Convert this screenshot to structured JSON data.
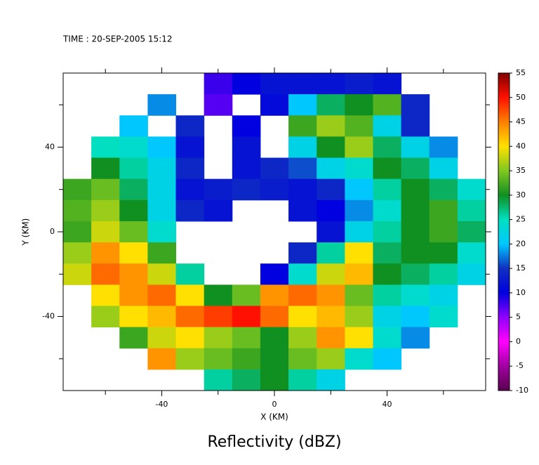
{
  "chart_data": {
    "type": "heatmap",
    "title": "TIME : 20-SEP-2005 15:12",
    "xlabel": "X (KM)",
    "ylabel": "Y (KM)",
    "colorbar_label": "Reflectivity (dBZ)",
    "xlim": [
      -75,
      75
    ],
    "ylim": [
      -75,
      75
    ],
    "xticks": [
      -40,
      0,
      40
    ],
    "yticks": [
      -40,
      0,
      40
    ],
    "x_minor_ticks": [
      -60,
      -20,
      20,
      60
    ],
    "y_minor_ticks": [
      -60,
      -20,
      20,
      60
    ],
    "x": [
      -70,
      -60,
      -50,
      -40,
      -30,
      -20,
      -10,
      0,
      10,
      20,
      30,
      40,
      50,
      60,
      70
    ],
    "y": [
      70,
      60,
      50,
      40,
      30,
      20,
      10,
      0,
      -10,
      -20,
      -30,
      -40,
      -50,
      -60,
      -70
    ],
    "z": [
      [
        null,
        null,
        null,
        null,
        null,
        8,
        10,
        12,
        12,
        12,
        13,
        12,
        null,
        null,
        null
      ],
      [
        null,
        null,
        null,
        18,
        null,
        7,
        null,
        11,
        20,
        28,
        30,
        33,
        14,
        null,
        null
      ],
      [
        null,
        null,
        20,
        null,
        14,
        null,
        10,
        null,
        32,
        36,
        33,
        22,
        14,
        null,
        null
      ],
      [
        null,
        25,
        24,
        20,
        12,
        null,
        12,
        null,
        22,
        30,
        36,
        28,
        22,
        18,
        null
      ],
      [
        null,
        30,
        26,
        22,
        14,
        null,
        12,
        14,
        16,
        22,
        24,
        30,
        28,
        22,
        null
      ],
      [
        32,
        34,
        28,
        22,
        12,
        13,
        14,
        13,
        12,
        14,
        20,
        26,
        30,
        28,
        24
      ],
      [
        33,
        36,
        30,
        22,
        14,
        12,
        null,
        null,
        12,
        10,
        18,
        24,
        30,
        32,
        26
      ],
      [
        32,
        38,
        34,
        24,
        null,
        null,
        null,
        null,
        null,
        12,
        22,
        26,
        30,
        32,
        28
      ],
      [
        36,
        44,
        40,
        32,
        null,
        null,
        null,
        null,
        14,
        26,
        40,
        28,
        30,
        30,
        24
      ],
      [
        38,
        46,
        44,
        38,
        26,
        null,
        null,
        10,
        24,
        38,
        42,
        30,
        28,
        26,
        22
      ],
      [
        null,
        40,
        44,
        46,
        40,
        30,
        34,
        44,
        46,
        44,
        34,
        26,
        24,
        22,
        null
      ],
      [
        null,
        36,
        40,
        42,
        46,
        48,
        50,
        46,
        40,
        42,
        36,
        22,
        20,
        24,
        null
      ],
      [
        null,
        null,
        32,
        38,
        40,
        36,
        34,
        30,
        36,
        44,
        40,
        24,
        18,
        null,
        null
      ],
      [
        null,
        null,
        null,
        44,
        36,
        34,
        32,
        30,
        34,
        36,
        24,
        20,
        null,
        null,
        null
      ],
      [
        null,
        null,
        null,
        null,
        null,
        26,
        28,
        30,
        26,
        22,
        null,
        null,
        null,
        null,
        null
      ]
    ],
    "colorbar_ticks": [
      -10,
      -5,
      0,
      5,
      10,
      15,
      20,
      25,
      30,
      35,
      40,
      45,
      50,
      55
    ],
    "colorbar_colors": [
      "#5a0050",
      "#a000a0",
      "#ff00ff",
      "#9000ff",
      "#0000e0",
      "#1030c0",
      "#00c8ff",
      "#00e0c0",
      "#109020",
      "#80c820",
      "#ffe000",
      "#ff8000",
      "#ff1000",
      "#800000"
    ]
  }
}
